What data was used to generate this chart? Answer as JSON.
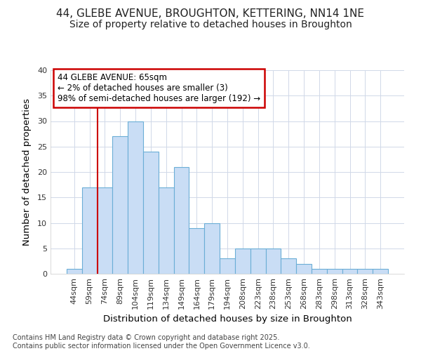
{
  "title_line1": "44, GLEBE AVENUE, BROUGHTON, KETTERING, NN14 1NE",
  "title_line2": "Size of property relative to detached houses in Broughton",
  "xlabel": "Distribution of detached houses by size in Broughton",
  "ylabel": "Number of detached properties",
  "bar_labels": [
    "44sqm",
    "59sqm",
    "74sqm",
    "89sqm",
    "104sqm",
    "119sqm",
    "134sqm",
    "149sqm",
    "164sqm",
    "179sqm",
    "194sqm",
    "208sqm",
    "223sqm",
    "238sqm",
    "253sqm",
    "268sqm",
    "283sqm",
    "298sqm",
    "313sqm",
    "328sqm",
    "343sqm"
  ],
  "bar_values": [
    1,
    17,
    17,
    27,
    30,
    24,
    17,
    21,
    9,
    10,
    3,
    5,
    5,
    5,
    3,
    2,
    1,
    1,
    1,
    1,
    1
  ],
  "bar_color": "#c9ddf5",
  "bar_edge_color": "#6baed6",
  "vline_x_idx": 1.5,
  "annotation_title": "44 GLEBE AVENUE: 65sqm",
  "annotation_line2": "← 2% of detached houses are smaller (3)",
  "annotation_line3": "98% of semi-detached houses are larger (192) →",
  "annotation_box_color": "#ffffff",
  "annotation_box_edge": "#cc0000",
  "vline_color": "#cc0000",
  "ylim": [
    0,
    40
  ],
  "yticks": [
    0,
    5,
    10,
    15,
    20,
    25,
    30,
    35,
    40
  ],
  "footer_line1": "Contains HM Land Registry data © Crown copyright and database right 2025.",
  "footer_line2": "Contains public sector information licensed under the Open Government Licence v3.0.",
  "bg_color": "#ffffff",
  "plot_bg_color": "#ffffff",
  "grid_color": "#d0d8e8",
  "title_fontsize": 11,
  "subtitle_fontsize": 10,
  "axis_label_fontsize": 9.5,
  "tick_fontsize": 8,
  "annotation_fontsize": 8.5,
  "footer_fontsize": 7
}
